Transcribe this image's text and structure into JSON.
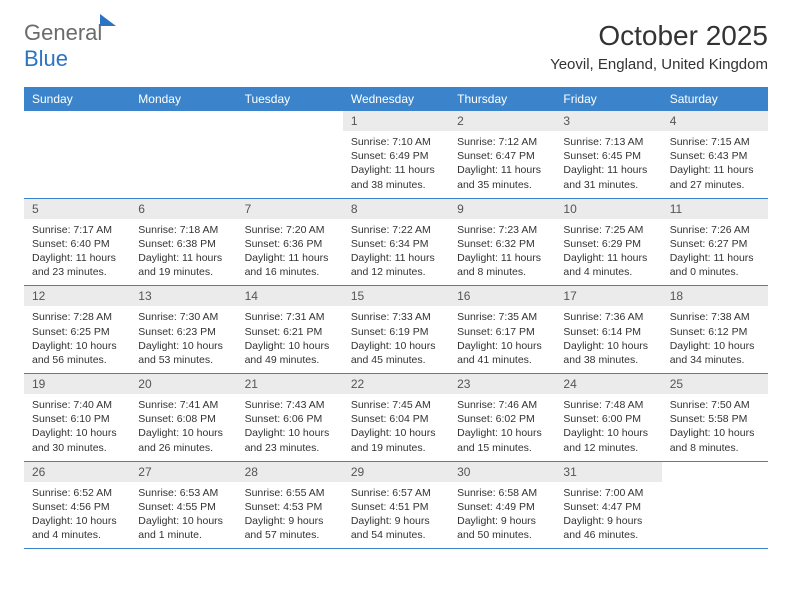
{
  "brand": {
    "part1": "General",
    "part2": "Blue"
  },
  "title": "October 2025",
  "location": "Yeovil, England, United Kingdom",
  "colors": {
    "header_bg": "#3b84cc",
    "daynum_bg": "#ebebeb",
    "rule": "#3b84cc",
    "brand_blue": "#2b74c4"
  },
  "weekdays": [
    "Sunday",
    "Monday",
    "Tuesday",
    "Wednesday",
    "Thursday",
    "Friday",
    "Saturday"
  ],
  "cells": [
    {
      "n": "",
      "sr": "",
      "ss": "",
      "dl": ""
    },
    {
      "n": "",
      "sr": "",
      "ss": "",
      "dl": ""
    },
    {
      "n": "",
      "sr": "",
      "ss": "",
      "dl": ""
    },
    {
      "n": "1",
      "sr": "7:10 AM",
      "ss": "6:49 PM",
      "dl": "11 hours and 38 minutes."
    },
    {
      "n": "2",
      "sr": "7:12 AM",
      "ss": "6:47 PM",
      "dl": "11 hours and 35 minutes."
    },
    {
      "n": "3",
      "sr": "7:13 AM",
      "ss": "6:45 PM",
      "dl": "11 hours and 31 minutes."
    },
    {
      "n": "4",
      "sr": "7:15 AM",
      "ss": "6:43 PM",
      "dl": "11 hours and 27 minutes."
    },
    {
      "n": "5",
      "sr": "7:17 AM",
      "ss": "6:40 PM",
      "dl": "11 hours and 23 minutes."
    },
    {
      "n": "6",
      "sr": "7:18 AM",
      "ss": "6:38 PM",
      "dl": "11 hours and 19 minutes."
    },
    {
      "n": "7",
      "sr": "7:20 AM",
      "ss": "6:36 PM",
      "dl": "11 hours and 16 minutes."
    },
    {
      "n": "8",
      "sr": "7:22 AM",
      "ss": "6:34 PM",
      "dl": "11 hours and 12 minutes."
    },
    {
      "n": "9",
      "sr": "7:23 AM",
      "ss": "6:32 PM",
      "dl": "11 hours and 8 minutes."
    },
    {
      "n": "10",
      "sr": "7:25 AM",
      "ss": "6:29 PM",
      "dl": "11 hours and 4 minutes."
    },
    {
      "n": "11",
      "sr": "7:26 AM",
      "ss": "6:27 PM",
      "dl": "11 hours and 0 minutes."
    },
    {
      "n": "12",
      "sr": "7:28 AM",
      "ss": "6:25 PM",
      "dl": "10 hours and 56 minutes."
    },
    {
      "n": "13",
      "sr": "7:30 AM",
      "ss": "6:23 PM",
      "dl": "10 hours and 53 minutes."
    },
    {
      "n": "14",
      "sr": "7:31 AM",
      "ss": "6:21 PM",
      "dl": "10 hours and 49 minutes."
    },
    {
      "n": "15",
      "sr": "7:33 AM",
      "ss": "6:19 PM",
      "dl": "10 hours and 45 minutes."
    },
    {
      "n": "16",
      "sr": "7:35 AM",
      "ss": "6:17 PM",
      "dl": "10 hours and 41 minutes."
    },
    {
      "n": "17",
      "sr": "7:36 AM",
      "ss": "6:14 PM",
      "dl": "10 hours and 38 minutes."
    },
    {
      "n": "18",
      "sr": "7:38 AM",
      "ss": "6:12 PM",
      "dl": "10 hours and 34 minutes."
    },
    {
      "n": "19",
      "sr": "7:40 AM",
      "ss": "6:10 PM",
      "dl": "10 hours and 30 minutes."
    },
    {
      "n": "20",
      "sr": "7:41 AM",
      "ss": "6:08 PM",
      "dl": "10 hours and 26 minutes."
    },
    {
      "n": "21",
      "sr": "7:43 AM",
      "ss": "6:06 PM",
      "dl": "10 hours and 23 minutes."
    },
    {
      "n": "22",
      "sr": "7:45 AM",
      "ss": "6:04 PM",
      "dl": "10 hours and 19 minutes."
    },
    {
      "n": "23",
      "sr": "7:46 AM",
      "ss": "6:02 PM",
      "dl": "10 hours and 15 minutes."
    },
    {
      "n": "24",
      "sr": "7:48 AM",
      "ss": "6:00 PM",
      "dl": "10 hours and 12 minutes."
    },
    {
      "n": "25",
      "sr": "7:50 AM",
      "ss": "5:58 PM",
      "dl": "10 hours and 8 minutes."
    },
    {
      "n": "26",
      "sr": "6:52 AM",
      "ss": "4:56 PM",
      "dl": "10 hours and 4 minutes."
    },
    {
      "n": "27",
      "sr": "6:53 AM",
      "ss": "4:55 PM",
      "dl": "10 hours and 1 minute."
    },
    {
      "n": "28",
      "sr": "6:55 AM",
      "ss": "4:53 PM",
      "dl": "9 hours and 57 minutes."
    },
    {
      "n": "29",
      "sr": "6:57 AM",
      "ss": "4:51 PM",
      "dl": "9 hours and 54 minutes."
    },
    {
      "n": "30",
      "sr": "6:58 AM",
      "ss": "4:49 PM",
      "dl": "9 hours and 50 minutes."
    },
    {
      "n": "31",
      "sr": "7:00 AM",
      "ss": "4:47 PM",
      "dl": "9 hours and 46 minutes."
    },
    {
      "n": "",
      "sr": "",
      "ss": "",
      "dl": ""
    }
  ],
  "labels": {
    "sunrise": "Sunrise:",
    "sunset": "Sunset:",
    "daylight": "Daylight:"
  }
}
